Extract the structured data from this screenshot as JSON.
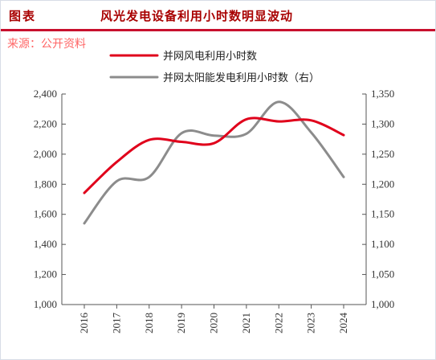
{
  "header": {
    "label": "图表",
    "title": "风光发电设备利用小时数明显波动",
    "source": "来源：公开资料"
  },
  "colors": {
    "accent": "#c8102e",
    "wind": "#e0001b",
    "solar": "#8c8c8c"
  },
  "chart_data": {
    "type": "line",
    "x": [
      "2016",
      "2017",
      "2018",
      "2019",
      "2020",
      "2021",
      "2022",
      "2023",
      "2024"
    ],
    "series": [
      {
        "name": "并网风电利用小时数",
        "axis": "left",
        "values": [
          1742,
          1948,
          2095,
          2082,
          2073,
          2232,
          2218,
          2225,
          2127
        ]
      },
      {
        "name": "并网太阳能发电利用小时数（右）",
        "axis": "right",
        "values": [
          1135,
          1205,
          1212,
          1285,
          1281,
          1284,
          1337,
          1286,
          1212
        ]
      }
    ],
    "y_left": {
      "lim": [
        1000,
        2400
      ],
      "ticks": [
        "1,000",
        "1,200",
        "1,400",
        "1,600",
        "1,800",
        "2,000",
        "2,200",
        "2,400"
      ]
    },
    "y_right": {
      "lim": [
        1000,
        1350
      ],
      "ticks": [
        "1,000",
        "1,050",
        "1,100",
        "1,150",
        "1,200",
        "1,250",
        "1,300",
        "1,350"
      ]
    },
    "legend_position": "top",
    "grid": false
  }
}
